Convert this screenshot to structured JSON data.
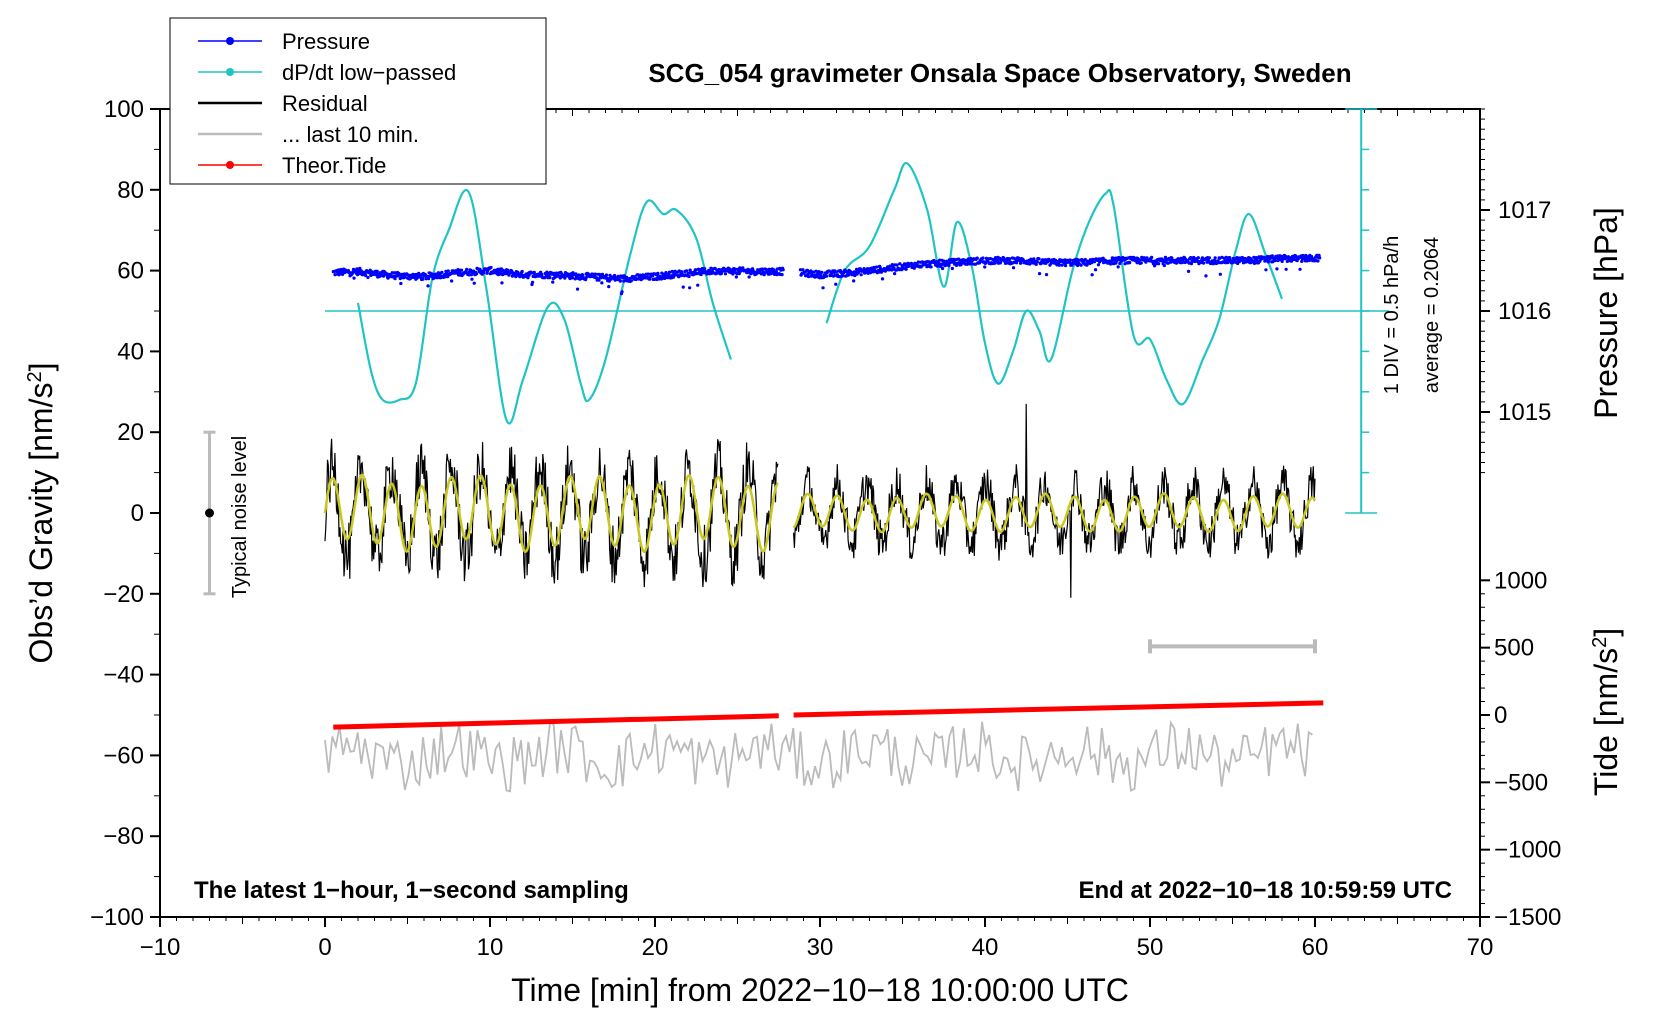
{
  "chart_data": {
    "type": "line",
    "title": "SCG_054 gravimeter Onsala Space Observatory, Sweden",
    "xlabel": "Time [min] from 2022−10−18 10:00:00 UTC",
    "ylabel_left": "Obs’d Gravity [nm/s",
    "ylabel_left_sup": "2",
    "ylabel_left_tail": "]",
    "ylabel_right_pressure": "Pressure [hPa]",
    "ylabel_right_tide": "Tide [nm/s",
    "ylabel_right_tide_sup": "2",
    "ylabel_right_tide_tail": "]",
    "xlim": [
      -10,
      70
    ],
    "ylim": [
      -100,
      100
    ],
    "x_ticks": [
      "−10",
      "0",
      "10",
      "20",
      "30",
      "40",
      "50",
      "60",
      "70"
    ],
    "x_tick_values": [
      -10,
      0,
      10,
      20,
      30,
      40,
      50,
      60,
      70
    ],
    "y_ticks": [
      "100",
      "80",
      "60",
      "40",
      "20",
      "0",
      "−20",
      "−40",
      "−60",
      "−80",
      "−100"
    ],
    "y_tick_values": [
      100,
      80,
      60,
      40,
      20,
      0,
      -20,
      -40,
      -60,
      -80,
      -100
    ],
    "pressure_ticks": [
      "1017",
      "1016",
      "1015"
    ],
    "pressure_tick_gravity": [
      75,
      50,
      25
    ],
    "tide_ticks": [
      "1000",
      "500",
      "0",
      "−500",
      "−1000",
      "−1500"
    ],
    "tide_tick_values": [
      1000,
      500,
      0,
      -500,
      -1000,
      -1500
    ],
    "tide_range": [
      -1500,
      1000
    ],
    "legend": [
      {
        "label": "Pressure",
        "color": "#0000ff",
        "marker": true
      },
      {
        "label": "dP/dt low−passed",
        "color": "#20c4c4",
        "marker": true
      },
      {
        "label": "Residual",
        "color": "#000000",
        "marker": false
      },
      {
        "label": "... last 10 min.",
        "color": "#bbbbbb",
        "marker": false
      },
      {
        "label": "Theor.Tide",
        "color": "#ff0000",
        "marker": true
      }
    ],
    "annotations": {
      "noise": "Typical noise level",
      "div": "1 DIV = 0.5 hPa/h",
      "average": "average = 0.2064",
      "bottom_left": "The latest 1−hour, 1−second sampling",
      "bottom_right": "End at 2022−10−18 10:59:59 UTC"
    },
    "noise_bar": {
      "x": -7,
      "low": -20,
      "high": 20,
      "center": 0
    },
    "dpdt_baseline": 50,
    "last10_bar": {
      "x_start": 50,
      "x_end": 60,
      "y": -33
    },
    "series": [
      {
        "name": "Pressure",
        "color": "#0000ff",
        "gaps": [
          [
            27.8,
            28.8
          ]
        ],
        "x": [
          0.5,
          2,
          4,
          6,
          8,
          10,
          12,
          14,
          16,
          18,
          20,
          22,
          24,
          26,
          27.8,
          28.8,
          30,
          32,
          34,
          36,
          38,
          40,
          42,
          44,
          46,
          48,
          50,
          52,
          54,
          56,
          58,
          60.3
        ],
        "y": [
          59.5,
          59.8,
          58.8,
          58.5,
          59.5,
          60,
          59,
          59,
          58.5,
          58,
          58.5,
          59.5,
          60,
          59.8,
          59.8,
          59.5,
          59,
          59.5,
          60.5,
          61.5,
          62,
          62.5,
          62.5,
          62,
          62,
          62.5,
          62.5,
          62.5,
          62.5,
          62.5,
          63,
          63
        ]
      },
      {
        "name": "dP/dt low−passed",
        "color": "#20c4c4",
        "segments": [
          {
            "x": [
              2,
              2.8,
              3.5,
              4.5,
              5.5,
              6.5,
              7.5,
              8.7,
              9.8,
              11,
              12,
              13.5,
              14.5,
              15.5,
              16,
              17,
              18.5,
              19.5,
              20.5,
              21.3,
              22.5,
              23.5,
              24.6
            ],
            "y": [
              52,
              35,
              28,
              28,
              32,
              58,
              70,
              79.5,
              55,
              23,
              33,
              51,
              48,
              32,
              28,
              38,
              64,
              77,
              74,
              75,
              68,
              52,
              38
            ]
          },
          {
            "x": [
              30.4,
              31.5,
              33,
              34.5,
              35.3,
              36.5,
              37.5,
              38.3,
              39.2,
              40,
              40.8,
              41.7,
              42.5,
              43.3,
              44,
              45.3,
              46.3,
              47.3,
              47.8,
              49,
              50,
              51,
              52,
              53.2,
              54.2,
              55.2,
              56,
              57,
              58
            ],
            "y": [
              47,
              60,
              66,
              80,
              86.5,
              75,
              56,
              72,
              61,
              42,
              32,
              40,
              50,
              45,
              38,
              60,
              72,
              79,
              76,
              44,
              43,
              33,
              27,
              38,
              48,
              65,
              74,
              64,
              53
            ]
          }
        ]
      },
      {
        "name": "Residual",
        "color": "#000000",
        "gaps": [
          [
            27.5,
            28.4
          ]
        ],
        "x_range": [
          0,
          60
        ],
        "oscillation_period_min": 1.8,
        "amplitude_first_half": 12,
        "amplitude_second_half": 8,
        "spikes": [
          {
            "x": 42.5,
            "y": 27
          },
          {
            "x": 45.2,
            "y": -21
          }
        ]
      },
      {
        "name": "Residual smoothed",
        "color": "#c8c820",
        "x_range": [
          0,
          60
        ],
        "oscillation_period_min": 1.8,
        "amplitude_first_half": 8,
        "amplitude_second_half": 4
      },
      {
        "name": "... last 10 min.",
        "color": "#bbbbbb",
        "x_range": [
          0,
          60
        ],
        "mean": -60,
        "amplitude": 7
      },
      {
        "name": "Theor.Tide",
        "color": "#ff0000",
        "gaps": [
          [
            27.5,
            28.4
          ]
        ],
        "x": [
          0.5,
          27.5,
          28.4,
          60.5
        ],
        "y": [
          -53,
          -50.2,
          -50,
          -47
        ]
      }
    ]
  }
}
